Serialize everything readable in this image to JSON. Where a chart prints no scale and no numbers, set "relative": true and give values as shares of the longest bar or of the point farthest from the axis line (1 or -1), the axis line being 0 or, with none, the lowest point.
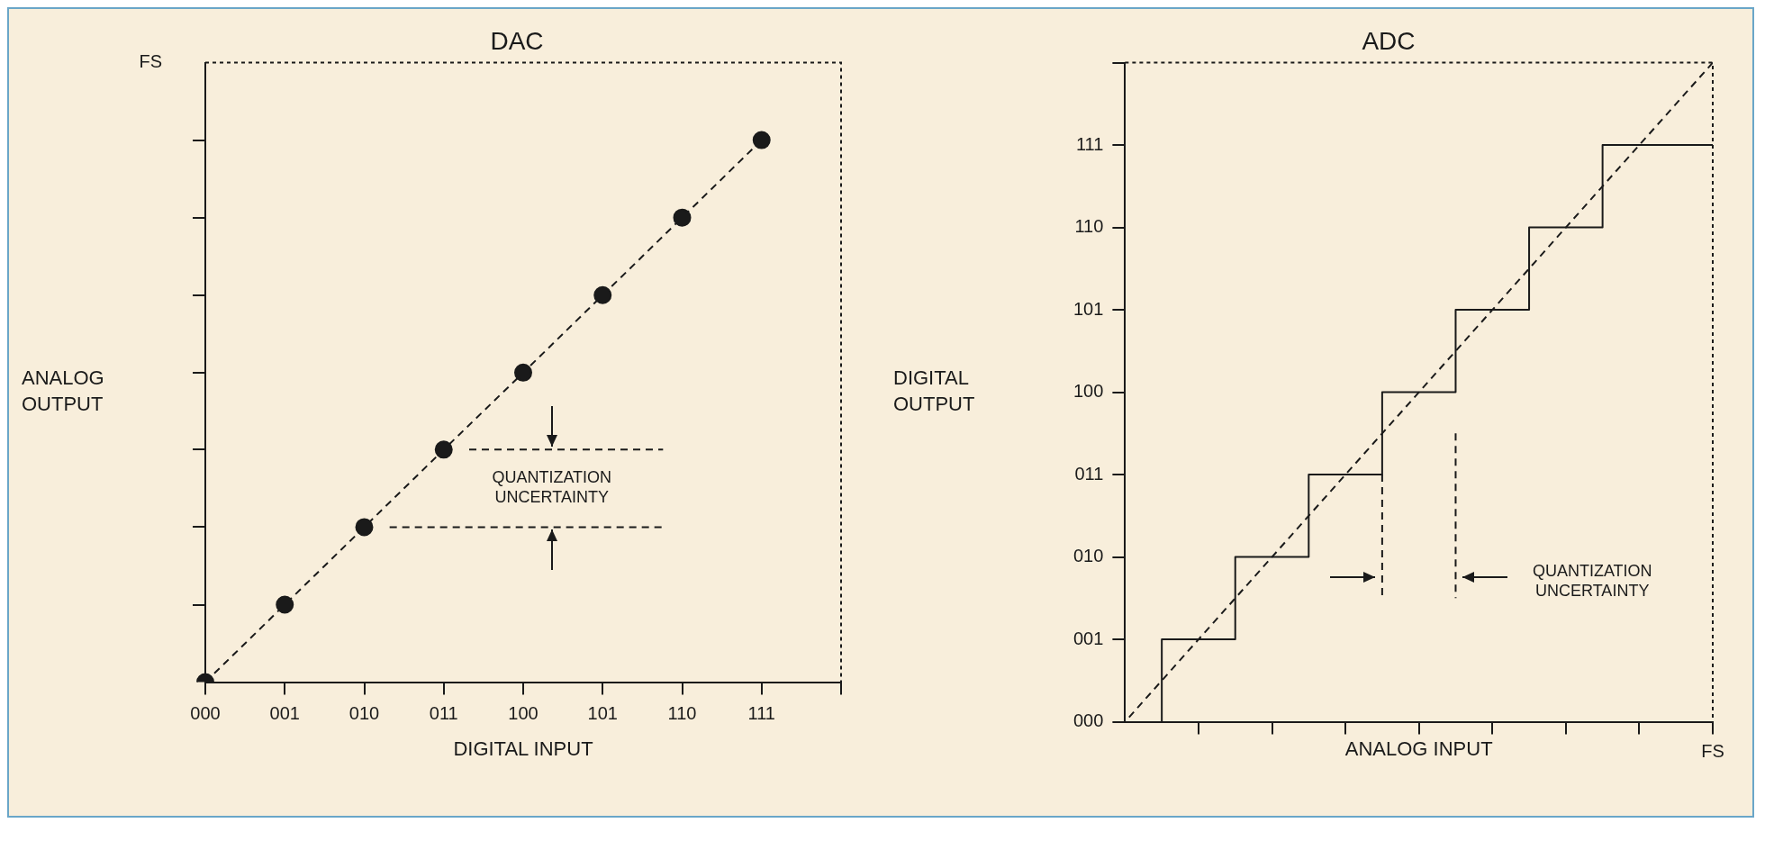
{
  "chart_data": [
    {
      "type": "line",
      "title": "DAC",
      "xlabel": "DIGITAL INPUT",
      "ylabel": "ANALOG OUTPUT",
      "marker": "circle",
      "line_style": "dashed",
      "relative": true,
      "categories": [
        "000",
        "001",
        "010",
        "011",
        "100",
        "101",
        "110",
        "111",
        null
      ],
      "series": [
        {
          "color": "#1a1a1a",
          "values": [
            0,
            0.143,
            0.286,
            0.429,
            0.571,
            0.714,
            0.857,
            1,
            null
          ]
        }
      ],
      "ref_lines": [
        {
          "axis": "y",
          "value": 0.429,
          "line_style": "dashed"
        },
        {
          "axis": "y",
          "value": 0.286,
          "line_style": "dashed"
        }
      ],
      "annotations": [
        "FS",
        "QUANTIZATION UNCERTAINTY"
      ]
    },
    {
      "type": "step",
      "title": "ADC",
      "xlabel": "ANALOG INPUT",
      "ylabel": "DIGITAL OUTPUT",
      "orientation": "horizontal",
      "relative": true,
      "categories": [
        null,
        "111",
        "110",
        "101",
        "100",
        "011",
        "010",
        "001",
        "000"
      ],
      "series": [
        {
          "type": "line",
          "line_style": "dashed",
          "color": "#1a1a1a",
          "values": [
            1,
            0.875,
            0.75,
            0.625,
            0.5,
            0.375,
            0.25,
            0.125,
            0
          ]
        },
        {
          "line_style": "solid",
          "color": "#1a1a1a",
          "values": [
            null,
            1,
            0.8125,
            0.6875,
            0.5625,
            0.4375,
            0.3125,
            0.1875,
            0.0625
          ]
        }
      ],
      "ref_lines": [
        {
          "axis": "x",
          "value": 0.4375,
          "line_style": "dashed"
        },
        {
          "axis": "x",
          "value": 0.5625,
          "line_style": "dashed"
        }
      ],
      "annotations": [
        "FS",
        "QUANTIZATION UNCERTAINTY"
      ]
    }
  ]
}
